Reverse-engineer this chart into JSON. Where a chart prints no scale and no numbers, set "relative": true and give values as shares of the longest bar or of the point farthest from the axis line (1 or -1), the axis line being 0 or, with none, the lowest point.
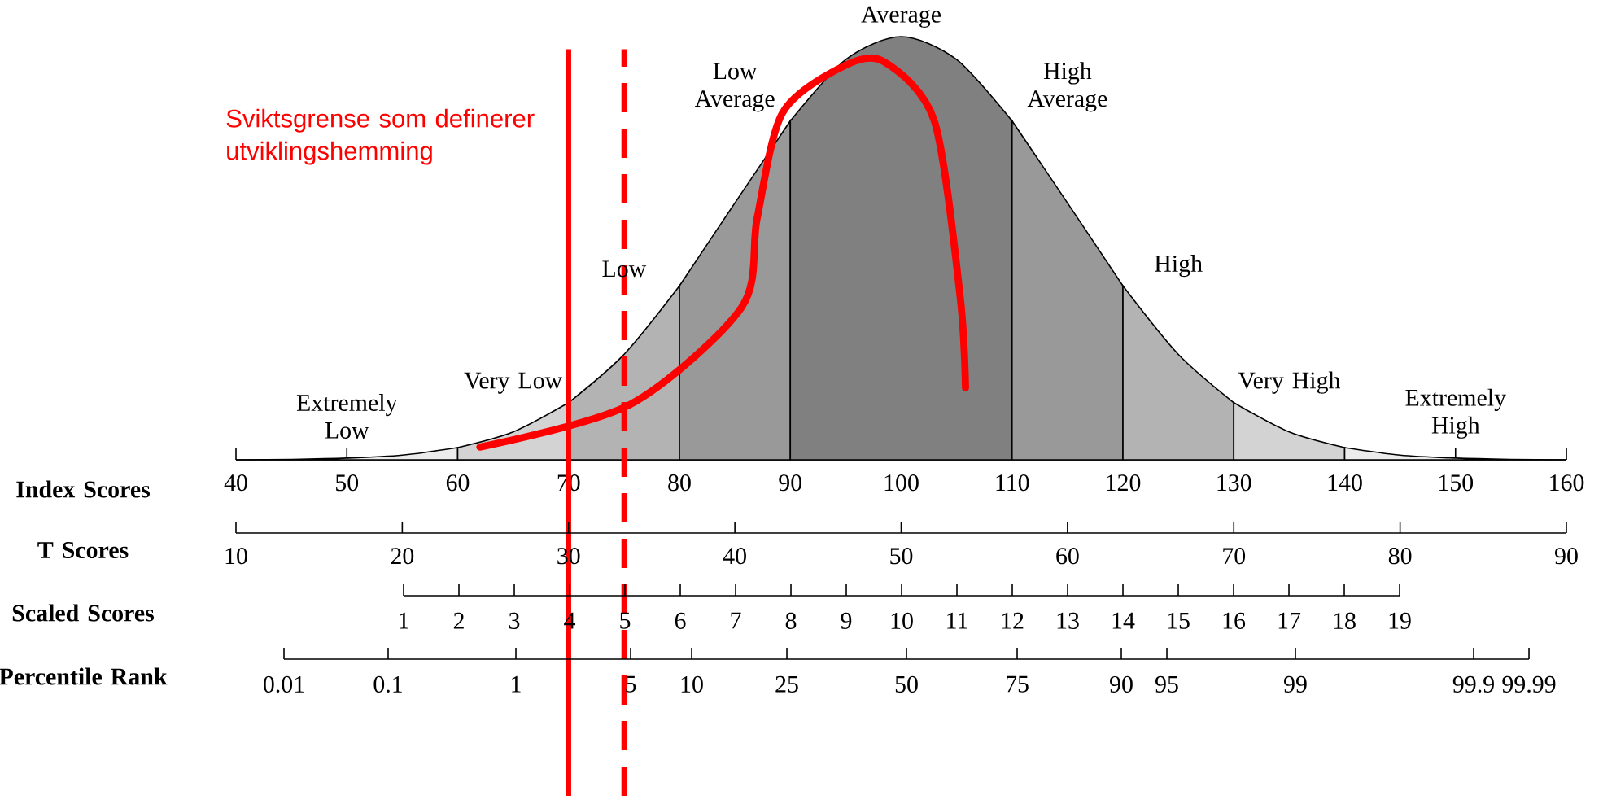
{
  "chart_data": {
    "type": "area",
    "relative": true,
    "tick_labels": "x",
    "xlim": [
      40,
      160
    ],
    "xticks": [
      40,
      50,
      60,
      70,
      80,
      90,
      100,
      110,
      120,
      130,
      140,
      150,
      160
    ],
    "xlabel": "Index Scores",
    "x2lim": [
      10,
      90
    ],
    "x2ticks": [
      10,
      20,
      30,
      40,
      50,
      60,
      70,
      80,
      90
    ],
    "x2label": "T Scores",
    "series": [
      {
        "name": "Extremely Low",
        "color": "#ececec",
        "x": [
          40,
          45,
          50,
          55,
          60
        ],
        "values": [
          0,
          0.001,
          0.004,
          0.011,
          0.029
        ]
      },
      {
        "name": "Very Low",
        "color": "#d3d3d3",
        "x": [
          60,
          65,
          70
        ],
        "values": [
          0.029,
          0.066,
          0.135
        ]
      },
      {
        "name": "Low",
        "color": "#b3b3b3",
        "x": [
          70,
          75,
          80
        ],
        "values": [
          0.135,
          0.249,
          0.411
        ]
      },
      {
        "name": "Low Average",
        "color": "#999999",
        "x": [
          80,
          85,
          90
        ],
        "values": [
          0.411,
          0.607,
          0.801
        ]
      },
      {
        "name": "Average",
        "color": "#808080",
        "x": [
          90,
          95,
          100,
          105,
          110
        ],
        "values": [
          0.801,
          0.946,
          1,
          0.946,
          0.801
        ]
      },
      {
        "name": "High Average",
        "color": "#999999",
        "x": [
          110,
          115,
          120
        ],
        "values": [
          0.801,
          0.607,
          0.411
        ]
      },
      {
        "name": "High",
        "color": "#b3b3b3",
        "x": [
          120,
          125,
          130
        ],
        "values": [
          0.411,
          0.249,
          0.135
        ]
      },
      {
        "name": "Very High",
        "color": "#d3d3d3",
        "x": [
          130,
          135,
          140
        ],
        "values": [
          0.135,
          0.066,
          0.029
        ]
      },
      {
        "name": "Extremely High",
        "color": "#ececec",
        "x": [
          140,
          145,
          150,
          155,
          160
        ],
        "values": [
          0.029,
          0.011,
          0.004,
          0.001,
          0
        ]
      },
      {
        "type": "line",
        "color": "#ff0000",
        "x": [
          62,
          75.5,
          85.6,
          87,
          89.3,
          94.8,
          98.5,
          103,
          105.3,
          105.8
        ],
        "values": [
          0.03,
          0.13,
          0.36,
          0.57,
          0.82,
          0.93,
          0.94,
          0.8,
          0.39,
          0.17
        ]
      }
    ],
    "ref_lines": [
      {
        "axis": "x",
        "value": 70,
        "color": "#ff0000",
        "line_style": "solid"
      },
      {
        "axis": "x",
        "value": 75,
        "color": "#ff0000",
        "line_style": "dashed"
      }
    ],
    "annotations": [
      "Sviktsgrense som definerer utviklingshemming",
      "Scaled Scores",
      "1",
      "2",
      "3",
      "4",
      "5",
      "6",
      "7",
      "8",
      "9",
      "10",
      "11",
      "12",
      "13",
      "14",
      "15",
      "16",
      "17",
      "18",
      "19",
      "Percentile Rank",
      "0.01",
      "0.1",
      "1",
      "5",
      "10",
      "25",
      "50",
      "75",
      "90",
      "95",
      "99",
      "99.9",
      "99.99"
    ]
  }
}
